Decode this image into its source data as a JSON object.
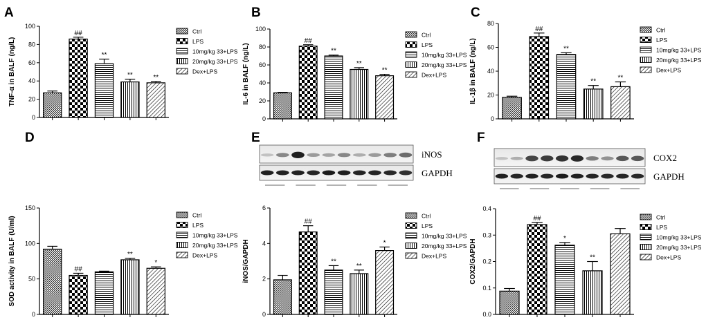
{
  "panel_letters": [
    "A",
    "B",
    "C",
    "D",
    "E",
    "F"
  ],
  "legend": [
    "Ctrl",
    "LPS",
    "10mg/kg 33+LPS",
    "20mg/kg 33+LPS",
    "Dex+LPS"
  ],
  "blots": {
    "E": [
      "iNOS",
      "GAPDH"
    ],
    "F": [
      "COX2",
      "GAPDH"
    ]
  },
  "colors": {
    "bar_fill": "#ffffff",
    "pattern_ink": "#000000",
    "axis": "#000000"
  },
  "chart_data": [
    {
      "id": "A",
      "type": "bar",
      "title": "",
      "xlabel": "",
      "ylabel": "TNF-α  in BALF (ng/L)",
      "ylim": [
        0,
        100
      ],
      "yticks": [
        0,
        20,
        40,
        60,
        80,
        100
      ],
      "values": [
        27,
        86,
        59,
        39,
        38
      ],
      "errors": [
        2,
        2,
        5,
        3,
        1.5
      ],
      "annotations": [
        "",
        "##",
        "**",
        "**",
        "**"
      ]
    },
    {
      "id": "B",
      "type": "bar",
      "title": "",
      "xlabel": "",
      "ylabel": "IL-6 in BALF (ng/L)",
      "ylim": [
        0,
        100
      ],
      "yticks": [
        0,
        20,
        40,
        60,
        80,
        100
      ],
      "values": [
        29,
        81,
        70,
        55,
        48
      ],
      "errors": [
        0.5,
        1.5,
        1,
        2,
        1.5
      ],
      "annotations": [
        "",
        "##",
        "**",
        "**",
        "**"
      ]
    },
    {
      "id": "C",
      "type": "bar",
      "title": "",
      "xlabel": "",
      "ylabel": "IL-1β  in BALF (ng/L)",
      "ylim": [
        0,
        80
      ],
      "yticks": [
        0,
        20,
        40,
        60,
        80
      ],
      "values": [
        18,
        69,
        54,
        25,
        27
      ],
      "errors": [
        1,
        3,
        1.5,
        3,
        4
      ],
      "annotations": [
        "",
        "##",
        "**",
        "**",
        "**"
      ]
    },
    {
      "id": "D",
      "type": "bar",
      "title": "",
      "xlabel": "",
      "ylabel": "SOD activity in BALF (U/ml)",
      "ylim": [
        0,
        150
      ],
      "yticks": [
        0,
        50,
        100,
        150
      ],
      "values": [
        92,
        55,
        60,
        77,
        65
      ],
      "errors": [
        4,
        3,
        1,
        2,
        2
      ],
      "annotations": [
        "",
        "##",
        "",
        "**",
        "*"
      ]
    },
    {
      "id": "E",
      "type": "bar",
      "title": "",
      "xlabel": "",
      "ylabel": "iNOS/GAPDH",
      "ylim": [
        0,
        6
      ],
      "yticks": [
        0,
        2,
        4,
        6
      ],
      "values": [
        1.95,
        4.65,
        2.5,
        2.3,
        3.6
      ],
      "errors": [
        0.25,
        0.35,
        0.25,
        0.2,
        0.2
      ],
      "annotations": [
        "",
        "##",
        "**",
        "**",
        "*"
      ]
    },
    {
      "id": "F",
      "type": "bar",
      "title": "",
      "xlabel": "",
      "ylabel": "COX2/GAPDH",
      "ylim": [
        0,
        0.4
      ],
      "yticks": [
        "0.0",
        "0.1",
        "0.2",
        "0.3",
        "0.4"
      ],
      "values": [
        0.088,
        0.34,
        0.262,
        0.165,
        0.305
      ],
      "errors": [
        0.01,
        0.008,
        0.01,
        0.035,
        0.02
      ],
      "annotations": [
        "",
        "##",
        "*",
        "**",
        ""
      ]
    }
  ]
}
